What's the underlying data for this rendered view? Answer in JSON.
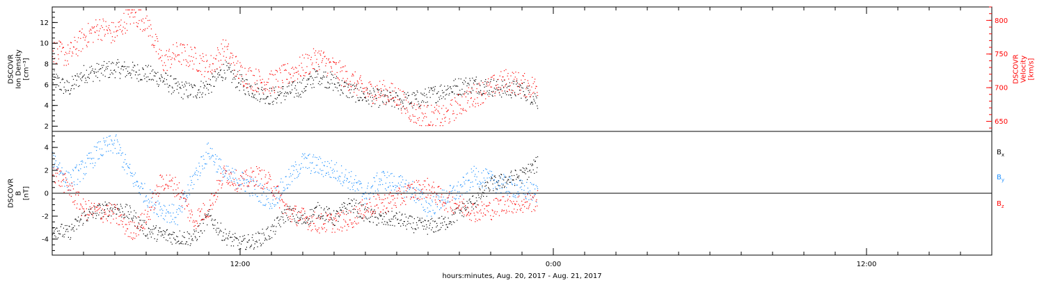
{
  "chart_data": [
    {
      "type": "scatter",
      "panel": "top",
      "ylabel_lines": [
        "DSCOVR",
        "Ion Density",
        "[cm⁻³]"
      ],
      "ylim": [
        1.5,
        13.5
      ],
      "yticks": [
        2,
        4,
        6,
        8,
        10,
        12
      ],
      "y2label_lines": [
        "DSCOVR",
        "Velocity",
        "[km/s]"
      ],
      "y2lim": [
        635,
        820
      ],
      "y2ticks": [
        650,
        700,
        750,
        800
      ],
      "y2_color": "#ff0000",
      "grid": false,
      "series": [
        {
          "name": "Ion Density",
          "axis": "left",
          "color": "#000000",
          "x_hours": [
            0,
            1,
            2,
            3,
            4,
            5,
            6,
            7,
            8,
            9,
            10,
            11,
            12,
            13,
            14,
            15,
            16,
            17,
            18,
            19,
            20,
            21,
            22,
            23,
            24,
            25,
            26,
            27,
            28,
            29,
            30,
            31
          ],
          "values": [
            6.6,
            5.6,
            7.1,
            7.3,
            7.6,
            7.4,
            7.1,
            6.6,
            5.6,
            5.4,
            5.9,
            7.5,
            6.2,
            5.4,
            4.9,
            5.3,
            5.8,
            7.0,
            6.2,
            5.4,
            4.9,
            4.7,
            4.5,
            4.5,
            4.9,
            5.5,
            5.9,
            6.1,
            5.8,
            5.6,
            5.6,
            4.5
          ],
          "spread": 0.9
        },
        {
          "name": "Velocity",
          "axis": "right",
          "color": "#ff0000",
          "x_hours": [
            0,
            1,
            2,
            3,
            4,
            5,
            6,
            7,
            8,
            9,
            10,
            11,
            12,
            13,
            14,
            15,
            16,
            17,
            18,
            19,
            20,
            21,
            22,
            23,
            24,
            25,
            26,
            27,
            28,
            29,
            30,
            31
          ],
          "values": [
            755,
            748,
            775,
            790,
            780,
            810,
            800,
            738,
            752,
            745,
            730,
            758,
            722,
            712,
            708,
            720,
            732,
            745,
            728,
            712,
            695,
            695,
            688,
            663,
            658,
            656,
            676,
            690,
            700,
            712,
            705,
            700
          ],
          "spread": 18
        }
      ]
    },
    {
      "type": "scatter",
      "panel": "bottom",
      "ylabel_lines": [
        "DSCOVR",
        "B",
        "[nT]"
      ],
      "ylim": [
        -5.4,
        5.4
      ],
      "yticks": [
        -4,
        -2,
        0,
        2,
        4
      ],
      "zero_line": true,
      "grid": false,
      "series": [
        {
          "name": "B",
          "subscript": "x",
          "color": "#000000",
          "x_hours": [
            0,
            1,
            2,
            3,
            4,
            5,
            6,
            7,
            8,
            9,
            10,
            11,
            12,
            13,
            14,
            15,
            16,
            17,
            18,
            19,
            20,
            21,
            22,
            23,
            24,
            25,
            26,
            27,
            28,
            29,
            30,
            31
          ],
          "values": [
            -3.0,
            -3.5,
            -2.0,
            -1.5,
            -1.2,
            -1.8,
            -3.2,
            -3.6,
            -3.8,
            -3.9,
            -2.0,
            -3.7,
            -4.4,
            -4.1,
            -3.3,
            -1.6,
            -2.4,
            -1.4,
            -2.2,
            -0.9,
            -1.8,
            -2.3,
            -2.2,
            -2.7,
            -2.9,
            -2.6,
            -1.6,
            -0.6,
            0.8,
            1.2,
            1.6,
            2.6
          ],
          "spread": 0.7
        },
        {
          "name": "B",
          "subscript": "y",
          "color": "#1e90ff",
          "x_hours": [
            0,
            1,
            2,
            3,
            4,
            5,
            6,
            7,
            8,
            9,
            10,
            11,
            12,
            13,
            14,
            15,
            16,
            17,
            18,
            19,
            20,
            21,
            22,
            23,
            24,
            25,
            26,
            27,
            28,
            29,
            30,
            31
          ],
          "values": [
            3.2,
            1.0,
            2.2,
            3.8,
            4.4,
            1.6,
            -0.2,
            -1.4,
            -2.0,
            1.3,
            3.8,
            1.6,
            1.2,
            0.3,
            -0.6,
            1.1,
            2.8,
            2.4,
            2.0,
            1.2,
            -0.1,
            1.3,
            0.8,
            0.3,
            -1.3,
            -0.4,
            0.3,
            1.6,
            1.1,
            0.7,
            0.3,
            0.0
          ],
          "spread": 0.9
        },
        {
          "name": "B",
          "subscript": "z",
          "color": "#ff0000",
          "x_hours": [
            0,
            1,
            2,
            3,
            4,
            5,
            6,
            7,
            8,
            9,
            10,
            11,
            12,
            13,
            14,
            15,
            16,
            17,
            18,
            19,
            20,
            21,
            22,
            23,
            24,
            25,
            26,
            27,
            28,
            29,
            30,
            31
          ],
          "values": [
            2.0,
            0.6,
            -1.4,
            -1.6,
            -1.8,
            -3.3,
            -2.2,
            1.2,
            0.5,
            -2.4,
            -1.2,
            1.8,
            0.9,
            1.6,
            0.8,
            -1.6,
            -2.1,
            -2.6,
            -2.5,
            -2.3,
            -1.2,
            -0.9,
            -0.5,
            0.3,
            0.5,
            -0.6,
            -1.0,
            -1.6,
            -1.4,
            -0.8,
            -0.9,
            -0.6
          ],
          "spread": 0.9
        }
      ]
    }
  ],
  "x_axis": {
    "range_hours": [
      0,
      60
    ],
    "tick_labels": [
      {
        "hour": 12,
        "label": "12:00"
      },
      {
        "hour": 32,
        "label": "0:00"
      },
      {
        "hour": 52,
        "label": "12:00"
      }
    ],
    "minor_tick_step_hours": 2,
    "title": "hours:minutes, Aug. 20, 2017 - Aug. 21, 2017"
  },
  "colors": {
    "axis": "#000000",
    "velocity_axis": "#ff0000",
    "bx": "#000000",
    "by": "#1e90ff",
    "bz": "#ff0000"
  }
}
